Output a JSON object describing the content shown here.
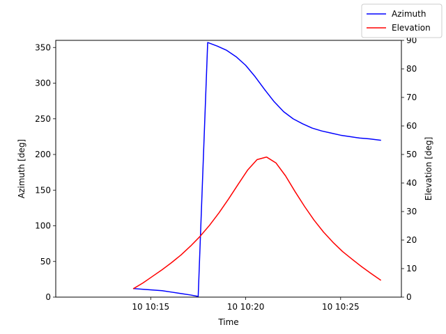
{
  "chart_data": {
    "type": "line",
    "x_axis": {
      "label": "Time",
      "unit": "minutes",
      "range": [
        10.0,
        28.2
      ],
      "ticks": [
        {
          "value": 15,
          "label": "10 10:15"
        },
        {
          "value": 20,
          "label": "10 10:20"
        },
        {
          "value": 25,
          "label": "10 10:25"
        }
      ]
    },
    "y_left": {
      "label": "Azimuth [deg]",
      "range": [
        0,
        360
      ],
      "ticks": [
        0,
        50,
        100,
        150,
        200,
        250,
        300,
        350
      ]
    },
    "y_right": {
      "label": "Elevation [deg]",
      "range": [
        0,
        90
      ],
      "ticks": [
        0,
        10,
        20,
        30,
        40,
        50,
        60,
        70,
        80,
        90
      ]
    },
    "legend": {
      "placement": "top-right, outside plot"
    },
    "series": [
      {
        "name": "Azimuth",
        "axis": "left",
        "color": "#0000ff",
        "x": [
          14.1,
          14.6,
          15.1,
          15.6,
          16.1,
          16.6,
          17.1,
          17.5,
          18.0,
          18.5,
          19.0,
          19.5,
          20.0,
          20.5,
          21.0,
          21.5,
          22.0,
          22.5,
          23.0,
          23.5,
          24.0,
          24.5,
          25.0,
          25.5,
          26.0,
          26.5,
          27.1
        ],
        "values": [
          12,
          11,
          10,
          9,
          7,
          5,
          3,
          1,
          357,
          352,
          346,
          337,
          325,
          309,
          291,
          274,
          260,
          250,
          243,
          237,
          233,
          230,
          227,
          225,
          223,
          222,
          220
        ]
      },
      {
        "name": "Elevation",
        "axis": "right",
        "color": "#ff0000",
        "x": [
          14.1,
          14.6,
          15.1,
          15.6,
          16.1,
          16.6,
          17.1,
          17.6,
          18.1,
          18.6,
          19.1,
          19.6,
          20.1,
          20.6,
          21.1,
          21.6,
          22.1,
          22.6,
          23.1,
          23.6,
          24.1,
          24.6,
          25.1,
          25.6,
          26.1,
          26.6,
          27.1
        ],
        "values": [
          3,
          5,
          7.3,
          9.6,
          12.1,
          14.8,
          17.9,
          21.3,
          25.2,
          29.6,
          34.4,
          39.5,
          44.5,
          48.2,
          49.1,
          47.0,
          42.5,
          37.0,
          31.8,
          27.0,
          22.8,
          19.2,
          16.0,
          13.3,
          10.7,
          8.3,
          6.0
        ]
      }
    ]
  }
}
